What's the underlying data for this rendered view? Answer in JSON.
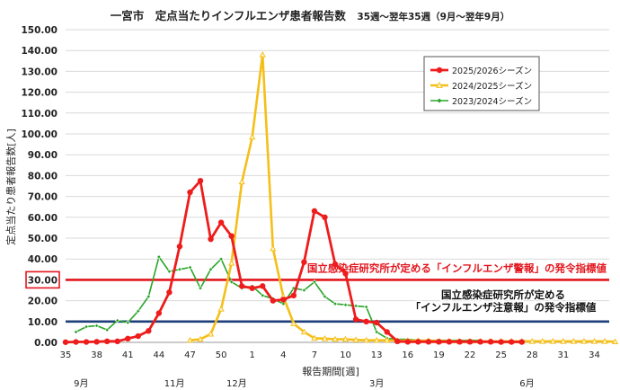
{
  "chart_data": {
    "type": "line",
    "title": "一宮市　定点当たりインフルエンザ患者報告数　",
    "subtitle": "35週～翌年35週（9月～翌年9月）",
    "xlabel": "報告期間[週]",
    "ylabel": "定点当たり患者報告数[人]",
    "ylim": [
      0,
      150
    ],
    "y_ticks": [
      "0.00",
      "10.00",
      "20.00",
      "30.00",
      "40.00",
      "50.00",
      "60.00",
      "70.00",
      "80.00",
      "90.00",
      "100.00",
      "110.00",
      "120.00",
      "130.00",
      "140.00",
      "150.00"
    ],
    "x_tick_labels": [
      "35",
      "38",
      "41",
      "44",
      "47",
      "50",
      "1",
      "4",
      "7",
      "10",
      "13",
      "16",
      "19",
      "22",
      "25",
      "28",
      "31",
      "34"
    ],
    "month_labels": [
      "9月",
      "11月",
      "12月",
      "3月",
      "6月"
    ],
    "grid": true,
    "legend_position": "top-right",
    "colors": {
      "2025/2026シーズン": "#ee1c1c",
      "2024/2025シーズン": "#f5bf18",
      "2023/2024シーズン": "#2aa52a",
      "alert": "#e3161e",
      "caution": "#1f3f7a"
    },
    "reference_lines": [
      {
        "value": 30,
        "label": "国立感染症研究所が定める「インフルエンザ警報」の発令指標値",
        "color": "#e3161e"
      },
      {
        "value": 10,
        "label": "国立感染症研究所が定める\n「インフルエンザ注意報」の発令指標値",
        "color": "#1f3f7a"
      }
    ],
    "highlight_tick": "30.00",
    "series": [
      {
        "name": "2025/2026シーズン",
        "start": 0,
        "values": [
          0.1,
          0.2,
          0.2,
          0.3,
          0.5,
          0.5,
          1.8,
          3,
          5.5,
          14,
          24,
          46,
          72,
          77.5,
          49.5,
          57.5,
          51,
          27,
          26,
          27,
          20,
          20.5,
          22.5,
          38.5,
          63,
          60,
          37.5,
          33,
          11,
          10,
          9.5,
          5,
          0.5,
          0.3,
          0.3,
          0.3,
          0.3,
          0.3,
          0.3,
          0.3,
          0.3,
          0.3,
          0.2,
          0.2,
          0.2
        ]
      },
      {
        "name": "2024/2025シーズン",
        "start": 12,
        "values": [
          1,
          1.5,
          4,
          16,
          38,
          77,
          98.5,
          138,
          45,
          22,
          9,
          5,
          2,
          1.8,
          1.5,
          1.5,
          1.2,
          1,
          1,
          1,
          0.8,
          0.8,
          0.8,
          0.8,
          0.6,
          0.6,
          0.5,
          0.5,
          0.5,
          0.5,
          0.5,
          0.5,
          0.5,
          0.5,
          0.5,
          0.5,
          0.5,
          0.5,
          0.5,
          0.5,
          0.5,
          0.3
        ]
      },
      {
        "name": "2023/2024シーズン",
        "start": 1,
        "values": [
          5,
          7.5,
          8,
          6,
          10.5,
          9.5,
          15,
          22,
          41,
          34,
          35,
          36,
          26,
          35,
          40,
          29,
          26,
          27,
          22.5,
          21,
          18.5,
          26,
          25,
          29,
          22,
          18.5,
          18,
          17.5,
          17,
          5,
          2,
          1.5,
          1.5,
          1,
          1,
          1,
          1,
          1,
          1,
          1
        ]
      }
    ]
  }
}
